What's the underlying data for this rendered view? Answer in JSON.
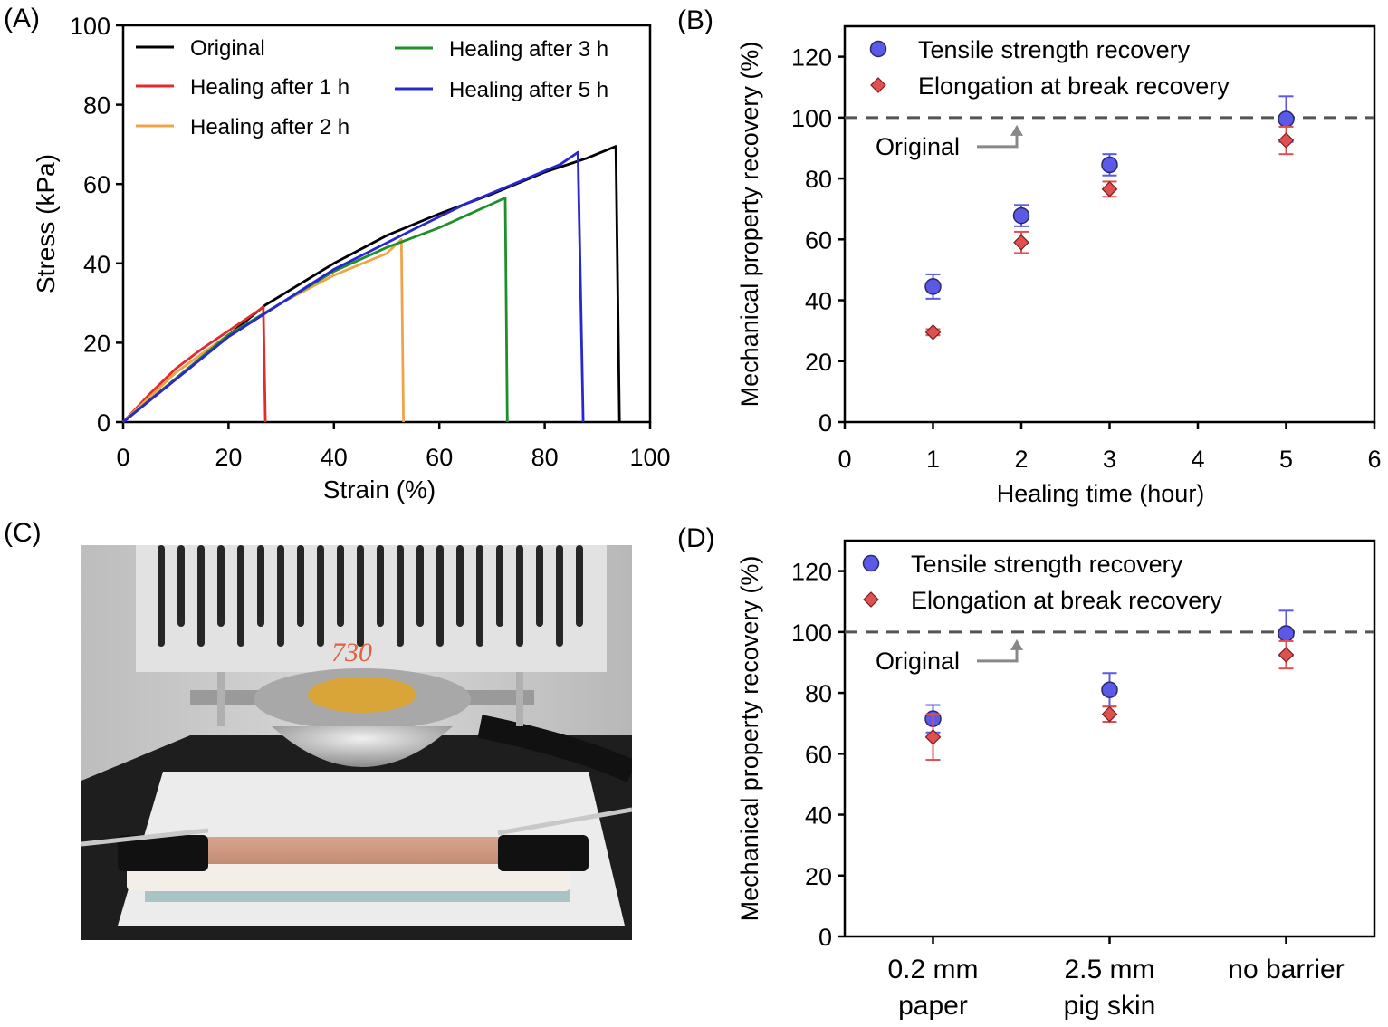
{
  "chart_data": [
    {
      "panel_label": "(A)",
      "type": "line",
      "xlabel": "Strain (%)",
      "ylabel": "Stress (kPa)",
      "xlim": [
        0,
        100
      ],
      "ylim": [
        0,
        100
      ],
      "xticks": [
        0,
        20,
        40,
        60,
        80,
        100
      ],
      "yticks": [
        0,
        20,
        40,
        60,
        80,
        100
      ],
      "grid": false,
      "legend_placement": "top",
      "series": [
        {
          "name": "Original",
          "color": "#000000",
          "x": [
            0,
            27,
            40,
            50,
            60,
            70,
            80,
            88,
            93.5,
            94.2
          ],
          "y": [
            0,
            29.5,
            40,
            47,
            52.5,
            57.5,
            63,
            66.5,
            69.5,
            0
          ]
        },
        {
          "name": "Healing after 1 h",
          "color": "#e8282a",
          "x": [
            0,
            5,
            10,
            15,
            20,
            25,
            26.6,
            27
          ],
          "y": [
            0,
            7,
            13.5,
            18.5,
            23,
            27.5,
            29,
            0
          ]
        },
        {
          "name": "Healing after 2 h",
          "color": "#f0a44a",
          "x": [
            0,
            10,
            20,
            30,
            40,
            50,
            52.8,
            53.2
          ],
          "y": [
            0,
            12.5,
            22,
            30,
            37,
            42.5,
            46,
            0
          ]
        },
        {
          "name": "Healing after 3 h",
          "color": "#1e8f2a",
          "x": [
            0,
            20,
            40,
            50,
            60,
            70,
            72.5,
            72.9
          ],
          "y": [
            0,
            22,
            38,
            44,
            49,
            55,
            56.5,
            0
          ]
        },
        {
          "name": "Healing after 5 h",
          "color": "#2828d2",
          "x": [
            0,
            20,
            40,
            55,
            65,
            75,
            83,
            86.3,
            87.3
          ],
          "y": [
            0,
            21.5,
            38.5,
            48.5,
            55,
            60.5,
            65,
            68,
            0
          ]
        }
      ]
    },
    {
      "panel_label": "(B)",
      "type": "scatter",
      "xlabel": "Healing time (hour)",
      "ylabel": "Mechanical property recovery (%)",
      "xlim": [
        0,
        6
      ],
      "ylim": [
        0,
        130
      ],
      "xticks": [
        0,
        1,
        2,
        3,
        4,
        5,
        6
      ],
      "yticks": [
        0,
        20,
        40,
        60,
        80,
        100,
        120
      ],
      "grid": false,
      "legend_placement": "top",
      "reference_line": {
        "y": 100,
        "label": "Original",
        "style": "dashed",
        "color": "#555555"
      },
      "series": [
        {
          "name": "Tensile strength recovery",
          "marker": "circle",
          "color": "#5a5ae6",
          "x": [
            1,
            2,
            3,
            5
          ],
          "y": [
            44.5,
            67.8,
            84.5,
            99.5
          ],
          "error": [
            4,
            3.5,
            3.5,
            7.5
          ]
        },
        {
          "name": "Elongation at break recovery",
          "marker": "diamond",
          "color": "#e05050",
          "x": [
            1,
            2,
            3,
            5
          ],
          "y": [
            29.5,
            59,
            76.5,
            92.5
          ],
          "error": [
            1,
            3.5,
            2.5,
            4.5
          ]
        }
      ]
    },
    {
      "panel_label": "(D)",
      "type": "scatter",
      "xlabel": "",
      "ylabel": "Mechanical property recovery (%)",
      "categories": [
        [
          "0.2 mm",
          "paper"
        ],
        [
          "2.5 mm",
          "pig skin"
        ],
        [
          "no barrier"
        ]
      ],
      "ylim": [
        0,
        130
      ],
      "yticks": [
        0,
        20,
        40,
        60,
        80,
        100,
        120
      ],
      "grid": false,
      "legend_placement": "top",
      "reference_line": {
        "y": 100,
        "label": "Original",
        "style": "dashed",
        "color": "#555555"
      },
      "series": [
        {
          "name": "Tensile strength recovery",
          "marker": "circle",
          "color": "#5a5ae6",
          "values": [
            71.5,
            81,
            99.5
          ],
          "error": [
            4.5,
            5.5,
            7.5
          ]
        },
        {
          "name": "Elongation at break recovery",
          "marker": "diamond",
          "color": "#e05050",
          "values": [
            65.5,
            73,
            92.5
          ],
          "error": [
            7.5,
            2.5,
            4.5
          ]
        }
      ]
    }
  ],
  "photo": {
    "panel_label": "(C)",
    "specimen_mark": "730",
    "colors": {
      "heatsink": "#dedede",
      "skin": "#d9a58f",
      "bench": "#1d1d1d",
      "background": "#c8c8c8"
    }
  }
}
